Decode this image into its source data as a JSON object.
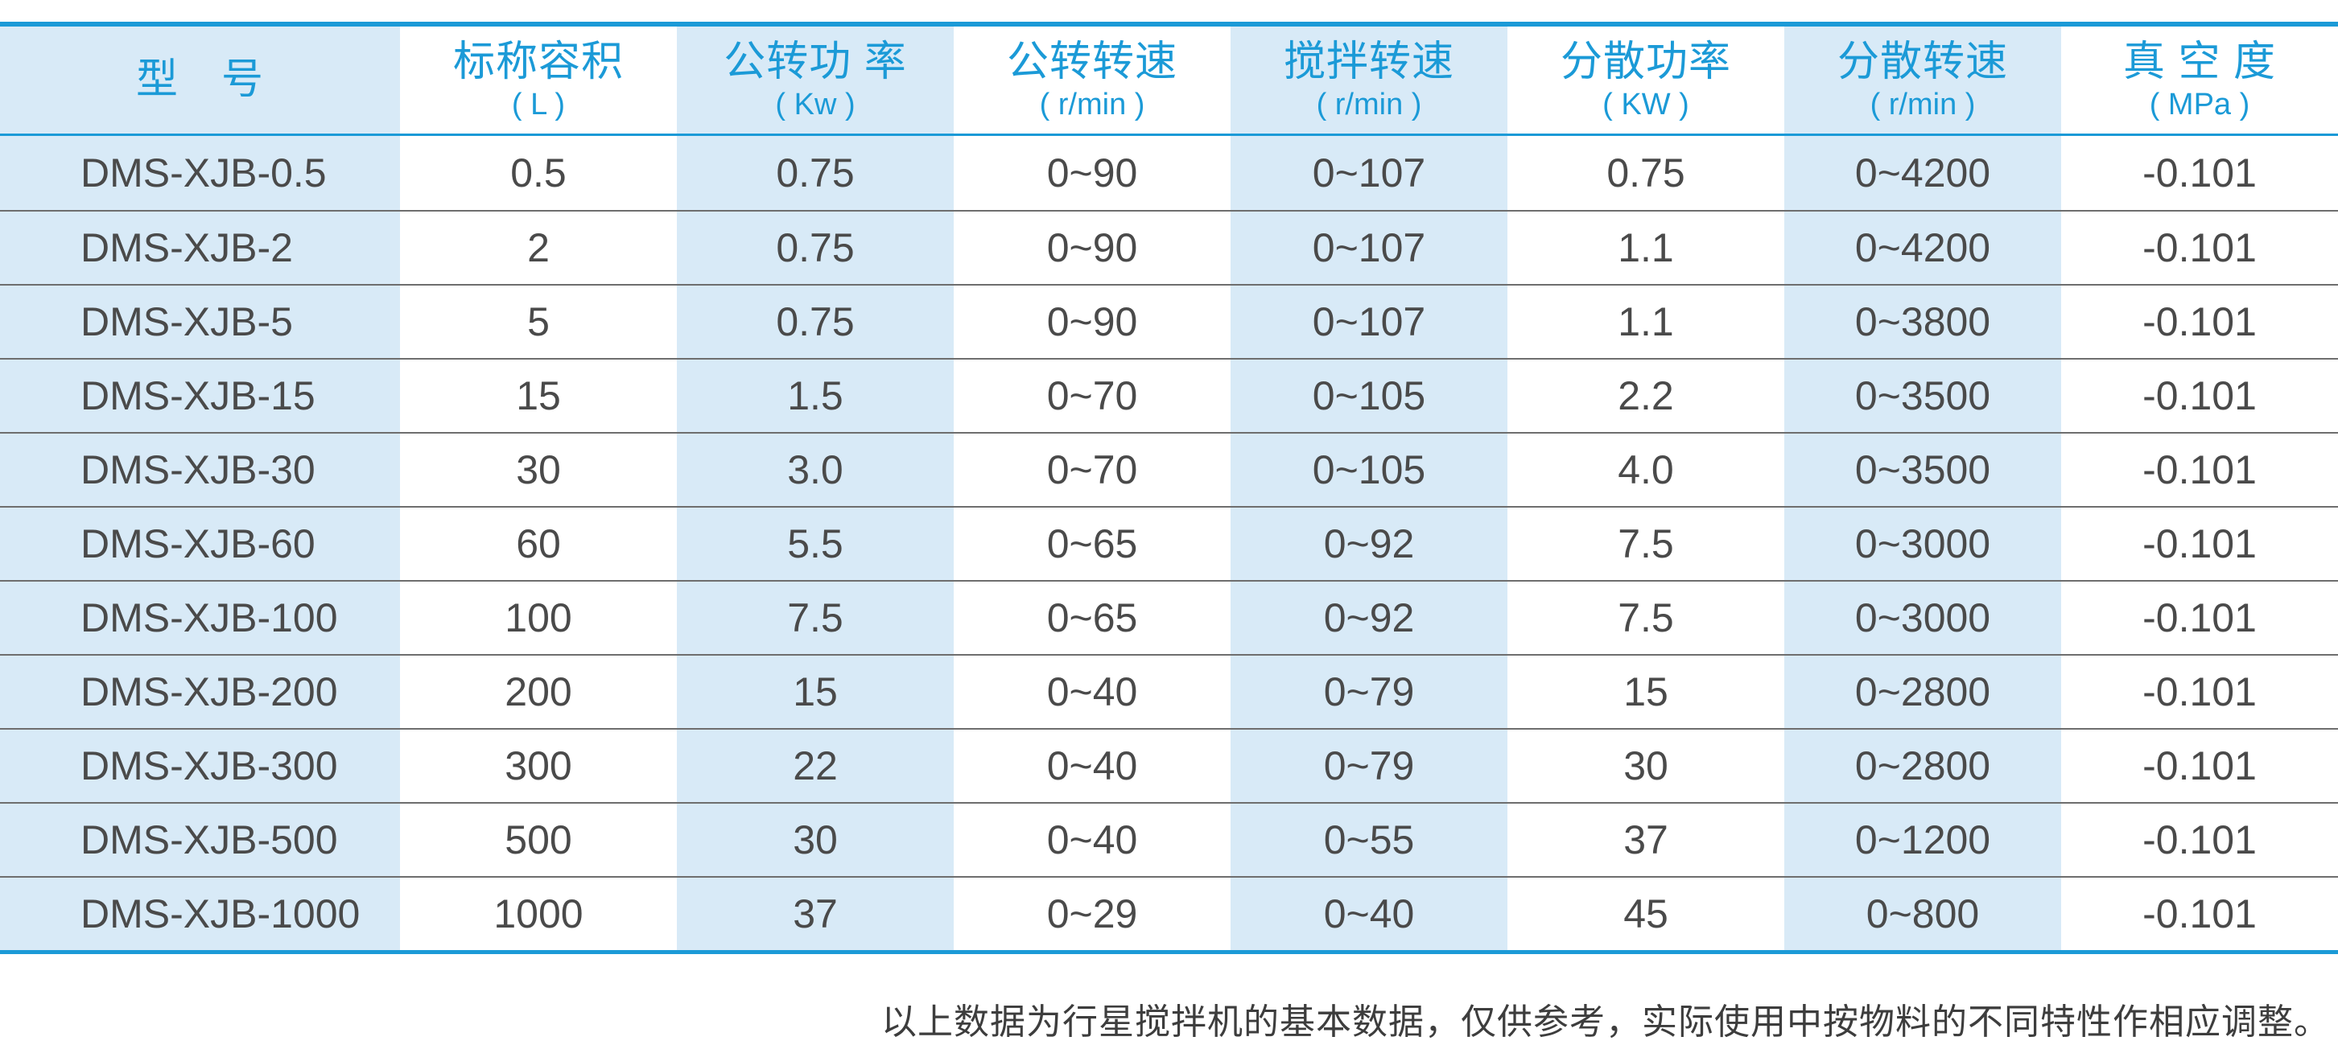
{
  "colors": {
    "accent": "#1b9ad7",
    "shaded_column": "#d8eaf7",
    "body_text": "#4a4a4a",
    "row_line": "#6e6e6e",
    "note_text": "#3d3d3d"
  },
  "table": {
    "columns": [
      {
        "label": "型　号",
        "unit": ""
      },
      {
        "label": "标称容积",
        "unit": "( L )"
      },
      {
        "label": "公转功 率",
        "unit": "( Kw )"
      },
      {
        "label": "公转转速",
        "unit": "( r/min )"
      },
      {
        "label": "搅拌转速",
        "unit": "( r/min )"
      },
      {
        "label": "分散功率",
        "unit": "( KW )"
      },
      {
        "label": "分散转速",
        "unit": "( r/min )"
      },
      {
        "label": "真 空 度",
        "unit": "( MPa )"
      }
    ],
    "rows": [
      [
        "DMS-XJB-0.5",
        "0.5",
        "0.75",
        "0~90",
        "0~107",
        "0.75",
        "0~4200",
        "-0.101"
      ],
      [
        "DMS-XJB-2",
        "2",
        "0.75",
        "0~90",
        "0~107",
        "1.1",
        "0~4200",
        "-0.101"
      ],
      [
        "DMS-XJB-5",
        "5",
        "0.75",
        "0~90",
        "0~107",
        "1.1",
        "0~3800",
        "-0.101"
      ],
      [
        "DMS-XJB-15",
        "15",
        "1.5",
        "0~70",
        "0~105",
        "2.2",
        "0~3500",
        "-0.101"
      ],
      [
        "DMS-XJB-30",
        "30",
        "3.0",
        "0~70",
        "0~105",
        "4.0",
        "0~3500",
        "-0.101"
      ],
      [
        "DMS-XJB-60",
        "60",
        "5.5",
        "0~65",
        "0~92",
        "7.5",
        "0~3000",
        "-0.101"
      ],
      [
        "DMS-XJB-100",
        "100",
        "7.5",
        "0~65",
        "0~92",
        "7.5",
        "0~3000",
        "-0.101"
      ],
      [
        "DMS-XJB-200",
        "200",
        "15",
        "0~40",
        "0~79",
        "15",
        "0~2800",
        "-0.101"
      ],
      [
        "DMS-XJB-300",
        "300",
        "22",
        "0~40",
        "0~79",
        "30",
        "0~2800",
        "-0.101"
      ],
      [
        "DMS-XJB-500",
        "500",
        "30",
        "0~40",
        "0~55",
        "37",
        "0~1200",
        "-0.101"
      ],
      [
        "DMS-XJB-1000",
        "1000",
        "37",
        "0~29",
        "0~40",
        "45",
        "0~800",
        "-0.101"
      ]
    ]
  },
  "footer": {
    "note": "以上数据为行星搅拌机的基本数据，仅供参考，实际使用中按物料的不同特性作相应调整。"
  }
}
